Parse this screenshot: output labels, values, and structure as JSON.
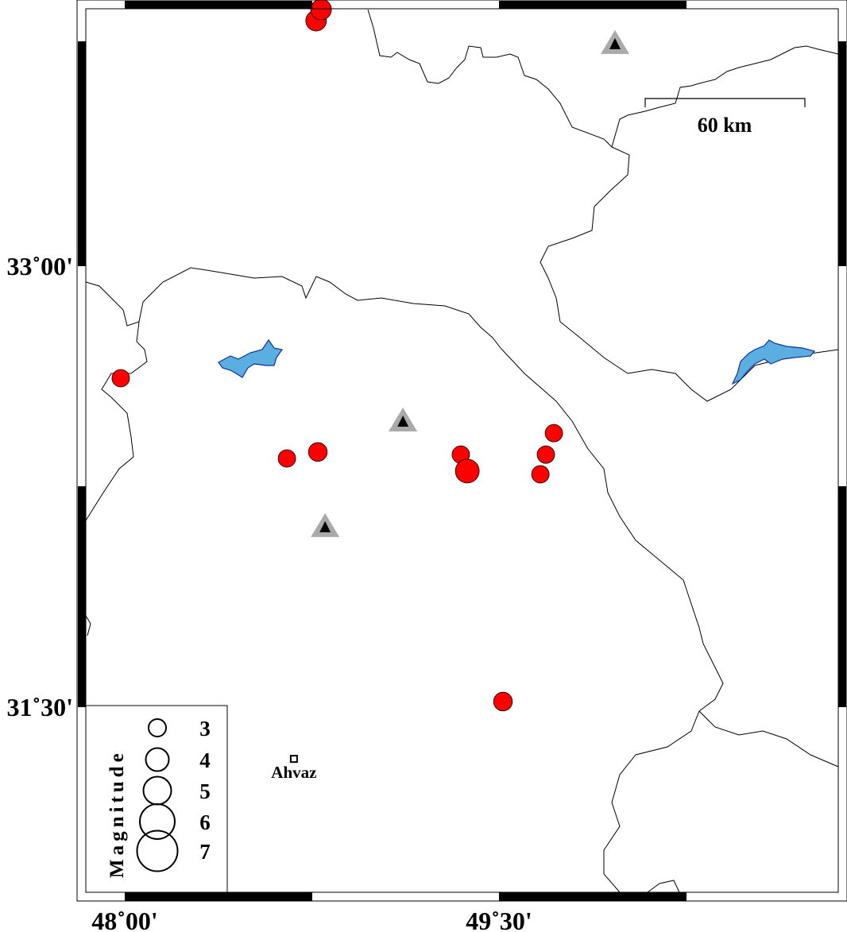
{
  "map": {
    "axes": {
      "x_ticks": [
        {
          "lon": 48.0,
          "label": "48˚00'"
        },
        {
          "lon": 49.5,
          "label": "49˚30'"
        }
      ],
      "y_ticks": [
        {
          "lat": 33.0,
          "label": "33˚00'"
        },
        {
          "lat": 31.5,
          "label": "31˚30'"
        }
      ]
    },
    "scale_bar": {
      "label": "60 km",
      "length_km": 60
    },
    "colors": {
      "event": "#ff0000",
      "station_outer": "#aaaaaa",
      "station_inner": "#000000",
      "lake": "#5aaee0",
      "border": "#000000"
    },
    "events": [
      {
        "lon": 48.767,
        "lat": 33.835,
        "mag": 3.5
      },
      {
        "lon": 48.787,
        "lat": 33.873,
        "mag": 3.5
      },
      {
        "lon": 47.984,
        "lat": 32.619,
        "mag": 3
      },
      {
        "lon": 48.65,
        "lat": 32.346,
        "mag": 3
      },
      {
        "lon": 48.774,
        "lat": 32.368,
        "mag": 3.2
      },
      {
        "lon": 49.347,
        "lat": 32.359,
        "mag": 3
      },
      {
        "lon": 49.373,
        "lat": 32.303,
        "mag": 4
      },
      {
        "lon": 49.72,
        "lat": 32.432,
        "mag": 3
      },
      {
        "lon": 49.688,
        "lat": 32.359,
        "mag": 3
      },
      {
        "lon": 49.666,
        "lat": 32.292,
        "mag": 3
      },
      {
        "lon": 49.516,
        "lat": 31.519,
        "mag": 3.2
      }
    ],
    "stations": [
      {
        "lon": 49.965,
        "lat": 33.757
      },
      {
        "lon": 49.115,
        "lat": 32.473
      },
      {
        "lon": 48.803,
        "lat": 32.114
      }
    ],
    "cities": [
      {
        "name": "Ahvaz",
        "lon": 48.678,
        "lat": 31.324
      }
    ],
    "legend": {
      "title": "Magnitude",
      "entries": [
        {
          "mag": 3,
          "label": "3"
        },
        {
          "mag": 4,
          "label": "4"
        },
        {
          "mag": 5,
          "label": "5"
        },
        {
          "mag": 6,
          "label": "6"
        },
        {
          "mag": 7,
          "label": "7"
        }
      ]
    }
  }
}
